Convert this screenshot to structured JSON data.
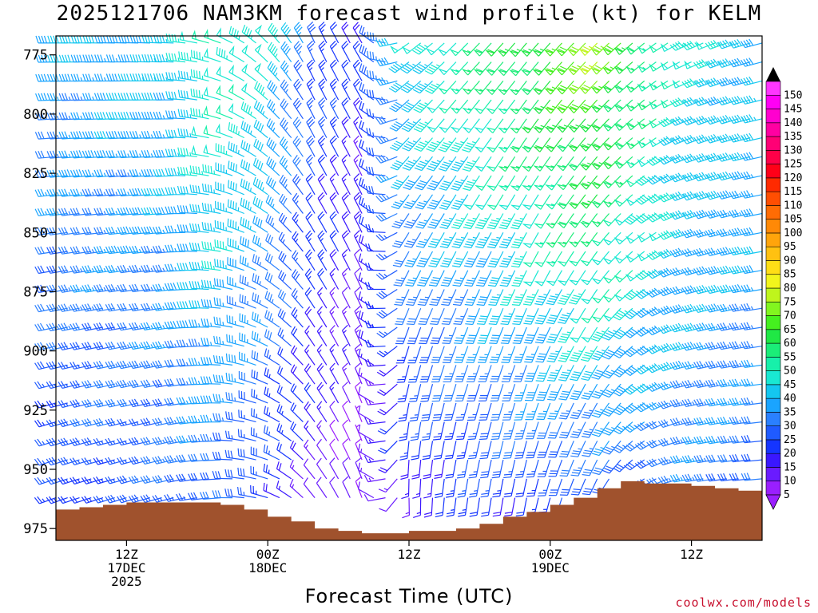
{
  "chart_data": {
    "type": "wind-barb-profile",
    "title": "2025121706 NAM3KM forecast wind profile (kt) for KELM",
    "xlabel": "Forecast Time (UTC)",
    "credit": "coolwx.com/models",
    "y_axis": {
      "label": "",
      "scale": "pressure (hPa), increasing downward",
      "range": [
        767,
        980
      ],
      "ticks": [
        775,
        800,
        825,
        850,
        875,
        900,
        925,
        950,
        975
      ]
    },
    "x_axis": {
      "tick_labels": [
        {
          "hour": 12,
          "lines": [
            "12Z",
            "17DEC",
            "2025"
          ]
        },
        {
          "hour": 24,
          "lines": [
            "00Z",
            "18DEC"
          ]
        },
        {
          "hour": 36,
          "lines": [
            "12Z"
          ]
        },
        {
          "hour": 48,
          "lines": [
            "00Z",
            "19DEC"
          ]
        },
        {
          "hour": 60,
          "lines": [
            "12Z"
          ]
        }
      ],
      "range_hours": [
        6,
        66
      ]
    },
    "colorbar": {
      "unit": "kt",
      "levels": [
        5,
        10,
        15,
        20,
        25,
        30,
        35,
        40,
        45,
        50,
        55,
        60,
        65,
        70,
        75,
        80,
        85,
        90,
        95,
        100,
        105,
        110,
        115,
        120,
        125,
        130,
        135,
        140,
        145,
        150
      ],
      "colors": [
        "#9a1fff",
        "#6a1bff",
        "#3a17ff",
        "#1535ff",
        "#1f5bff",
        "#2a80ff",
        "#1aa4ff",
        "#14c7f0",
        "#19e8d2",
        "#17f0aa",
        "#1bed78",
        "#20e845",
        "#45f01f",
        "#82f51f",
        "#bff51c",
        "#f2f51c",
        "#ffde16",
        "#ffc111",
        "#ffa40b",
        "#ff8906",
        "#ff6c04",
        "#ff4e02",
        "#ff2a00",
        "#ff0018",
        "#ff0048",
        "#ff0075",
        "#ff00a2",
        "#ff00cf",
        "#ff00f5",
        "#ff36ff"
      ]
    },
    "terrain": {
      "color": "#a0522d",
      "surface_pressure_by_hour": [
        [
          6,
          967
        ],
        [
          8,
          966
        ],
        [
          10,
          965
        ],
        [
          12,
          964
        ],
        [
          14,
          964
        ],
        [
          16,
          964
        ],
        [
          18,
          964
        ],
        [
          20,
          965
        ],
        [
          22,
          967
        ],
        [
          24,
          970
        ],
        [
          26,
          972
        ],
        [
          28,
          975
        ],
        [
          30,
          976
        ],
        [
          32,
          977
        ],
        [
          34,
          977
        ],
        [
          36,
          976
        ],
        [
          38,
          976
        ],
        [
          40,
          975
        ],
        [
          42,
          973
        ],
        [
          44,
          970
        ],
        [
          46,
          968
        ],
        [
          48,
          965
        ],
        [
          50,
          962
        ],
        [
          52,
          958
        ],
        [
          54,
          955
        ],
        [
          56,
          956
        ],
        [
          58,
          956
        ],
        [
          60,
          957
        ],
        [
          62,
          958
        ],
        [
          64,
          959
        ],
        [
          66,
          959
        ]
      ]
    },
    "wind_barbs": {
      "hours_start": 6,
      "hours_step": 1,
      "hours_count": 61,
      "pressure_start": 770,
      "pressure_step": 8,
      "pressure_count": 25,
      "regime_keyframes": [
        {
          "hour": 6,
          "low_dir": 250,
          "low_speed": 22,
          "high_dir": 270,
          "high_speed": 38
        },
        {
          "hour": 16,
          "low_dir": 255,
          "low_speed": 28,
          "high_dir": 272,
          "high_speed": 42
        },
        {
          "hour": 20,
          "low_dir": 265,
          "low_speed": 30,
          "high_dir": 290,
          "high_speed": 52
        },
        {
          "hour": 24,
          "low_dir": 285,
          "low_speed": 20,
          "high_dir": 315,
          "high_speed": 48
        },
        {
          "hour": 28,
          "low_dir": 320,
          "low_speed": 12,
          "high_dir": 335,
          "high_speed": 28
        },
        {
          "hour": 32,
          "low_dir": 340,
          "low_speed": 5,
          "high_dir": 330,
          "high_speed": 20
        },
        {
          "hour": 36,
          "low_dir": 175,
          "low_speed": 12,
          "high_dir": 235,
          "high_speed": 45
        },
        {
          "hour": 40,
          "low_dir": 185,
          "low_speed": 16,
          "high_dir": 225,
          "high_speed": 52
        },
        {
          "hour": 46,
          "low_dir": 190,
          "low_speed": 20,
          "high_dir": 220,
          "high_speed": 62
        },
        {
          "hour": 52,
          "low_dir": 205,
          "low_speed": 24,
          "high_dir": 225,
          "high_speed": 74
        },
        {
          "hour": 56,
          "low_dir": 235,
          "low_speed": 28,
          "high_dir": 230,
          "high_speed": 60
        },
        {
          "hour": 60,
          "low_dir": 260,
          "low_speed": 32,
          "high_dir": 245,
          "high_speed": 46
        },
        {
          "hour": 66,
          "low_dir": 265,
          "low_speed": 30,
          "high_dir": 255,
          "high_speed": 42
        }
      ]
    },
    "grid": false,
    "legend": "right"
  }
}
